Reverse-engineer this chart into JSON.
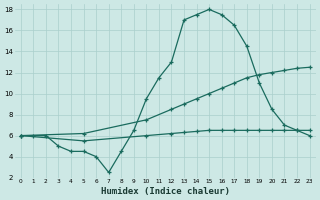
{
  "xlabel": "Humidex (Indice chaleur)",
  "xlim": [
    -0.5,
    23.5
  ],
  "ylim": [
    2,
    18.5
  ],
  "yticks": [
    2,
    4,
    6,
    8,
    10,
    12,
    14,
    16,
    18
  ],
  "xticks": [
    0,
    1,
    2,
    3,
    4,
    5,
    6,
    7,
    8,
    9,
    10,
    11,
    12,
    13,
    14,
    15,
    16,
    17,
    18,
    19,
    20,
    21,
    22,
    23
  ],
  "bg_color": "#cde8e5",
  "grid_color": "#aacfcc",
  "line_color": "#1a6b5e",
  "line1_x": [
    0,
    1,
    2,
    3,
    4,
    5,
    6,
    7,
    8,
    9,
    10,
    11,
    12,
    13,
    14,
    15,
    16,
    17,
    18,
    19,
    20,
    21,
    22,
    23
  ],
  "line1_y": [
    6,
    6,
    6,
    5,
    4.5,
    4.5,
    4,
    2.5,
    4.5,
    6.5,
    9.5,
    11.5,
    13,
    17,
    17.5,
    18,
    17.5,
    16.5,
    14.5,
    11,
    8.5,
    7,
    6.5,
    6
  ],
  "line2_x": [
    0,
    5,
    10,
    12,
    13,
    14,
    15,
    16,
    17,
    18,
    19,
    20,
    21,
    22,
    23
  ],
  "line2_y": [
    6,
    6.2,
    7.5,
    8.5,
    9,
    9.5,
    10,
    10.5,
    11,
    11.5,
    11.8,
    12,
    12.2,
    12.4,
    12.5
  ],
  "line3_x": [
    0,
    5,
    10,
    12,
    13,
    14,
    15,
    16,
    17,
    18,
    19,
    20,
    21,
    22,
    23
  ],
  "line3_y": [
    6,
    5.5,
    6,
    6.2,
    6.3,
    6.4,
    6.5,
    6.5,
    6.5,
    6.5,
    6.5,
    6.5,
    6.5,
    6.5,
    6.5
  ]
}
